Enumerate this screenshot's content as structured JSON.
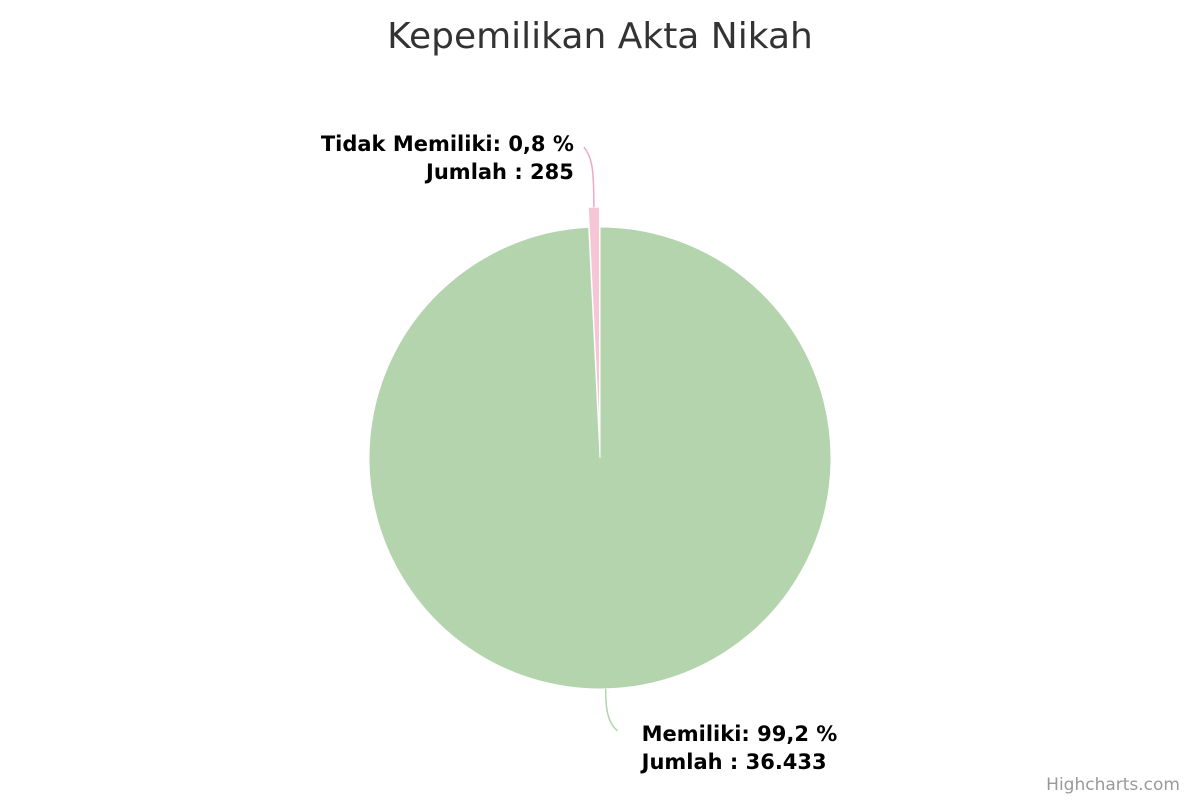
{
  "chart_data": {
    "type": "pie",
    "title": "Kepemilikan Akta Nikah",
    "slices": [
      {
        "name": "Memiliki",
        "percent": 99.2,
        "count": 36433,
        "label_line1": "Memiliki: 99,2 %",
        "label_line2": "Jumlah : 36.433",
        "color": "#b3d4ad"
      },
      {
        "name": "Tidak Memiliki",
        "percent": 0.8,
        "count": 285,
        "label_line1": "Tidak Memiliki: 0,8 %",
        "label_line2": "Jumlah : 285",
        "color": "#f7c6d6",
        "sliced": true
      }
    ],
    "legend": "none"
  },
  "credits": "Highcharts.com"
}
